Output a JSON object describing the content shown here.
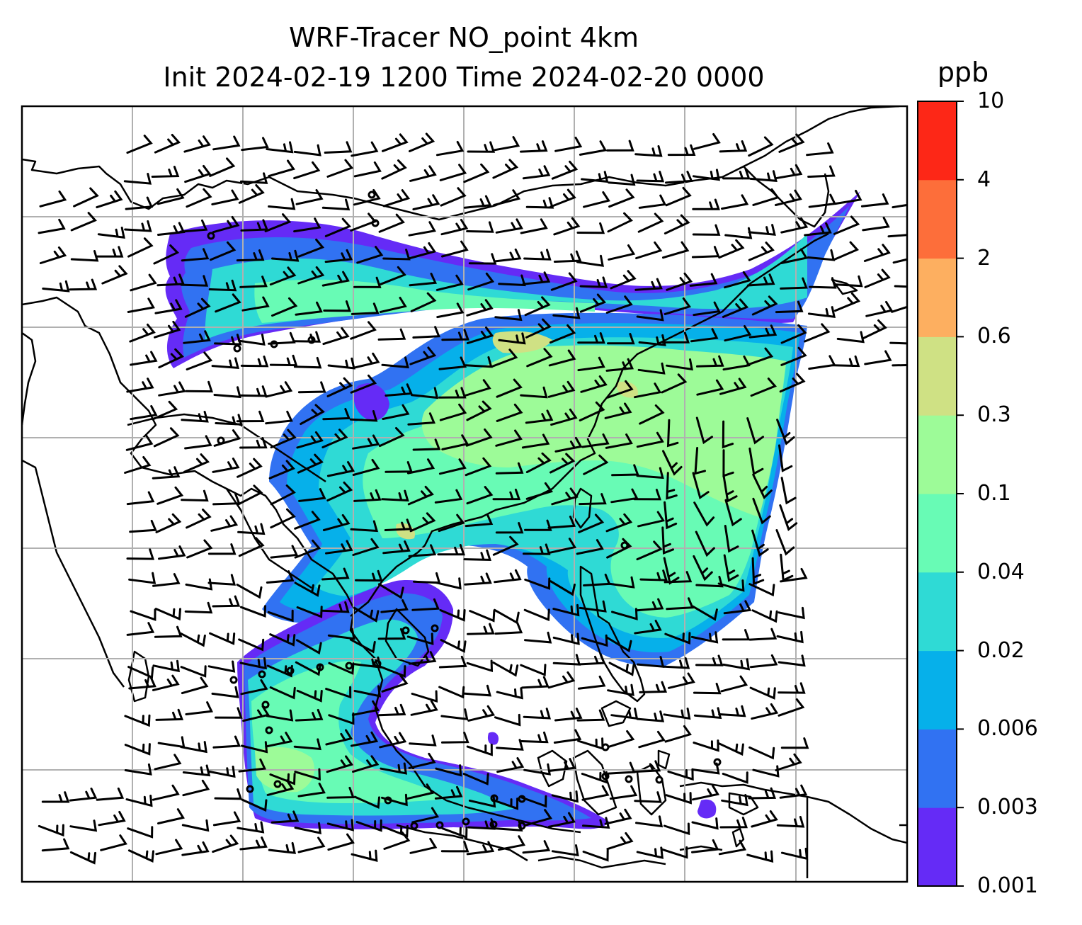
{
  "title_line1": "WRF-Tracer NO_point 4km",
  "title_line2": "Init 2024-02-19 1200 Time 2024-02-20 0000",
  "colorbar": {
    "unit": "ppb",
    "levels": [
      "0.001",
      "0.003",
      "0.006",
      "0.02",
      "0.04",
      "0.1",
      "0.3",
      "0.6",
      "2",
      "4",
      "10"
    ],
    "colors": [
      "#652bf6",
      "#3172f2",
      "#06b0ea",
      "#2fdad5",
      "#68fbb5",
      "#9dfb98",
      "#cfe184",
      "#fdaf60",
      "#fd6e3a",
      "#fd2717"
    ]
  },
  "map": {
    "field": "NO tracer concentration",
    "overlay": "wind barbs",
    "background": "#ffffff",
    "coastline_color": "#000000",
    "gridline_color": "#b0b0b0"
  }
}
